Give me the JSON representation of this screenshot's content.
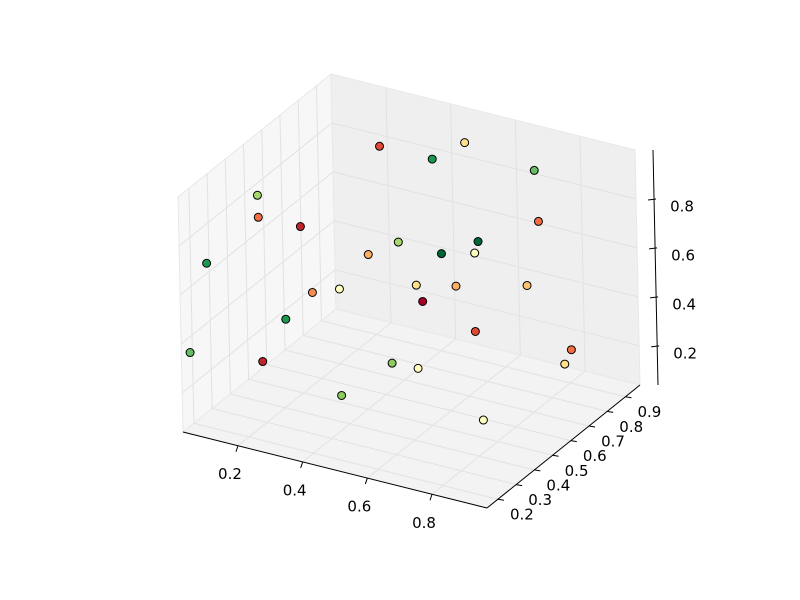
{
  "chart_data": {
    "type": "scatter3d",
    "x": [
      0.32,
      0.46,
      0.51,
      0.69,
      0.11,
      0.14,
      0.23,
      0.74,
      0.08,
      0.37,
      0.47,
      0.54,
      0.62,
      0.58,
      0.24,
      0.33,
      0.5,
      0.56,
      0.66,
      0.49,
      0.19,
      0.6,
      0.04,
      0.15,
      0.46,
      0.5,
      0.88,
      0.87,
      0.37,
      0.74
    ],
    "y": [
      0.73,
      0.77,
      0.86,
      0.92,
      0.43,
      0.38,
      0.45,
      0.85,
      0.2,
      0.57,
      0.56,
      0.67,
      0.73,
      0.78,
      0.49,
      0.48,
      0.6,
      0.71,
      0.92,
      0.65,
      0.43,
      0.74,
      0.17,
      0.37,
      0.53,
      0.6,
      0.77,
      0.75,
      0.41,
      0.53
    ],
    "z": [
      0.95,
      0.92,
      0.95,
      0.86,
      0.86,
      0.81,
      0.76,
      0.71,
      0.71,
      0.62,
      0.71,
      0.62,
      0.66,
      0.57,
      0.47,
      0.52,
      0.52,
      0.47,
      0.38,
      0.42,
      0.38,
      0.28,
      0.35,
      0.23,
      0.23,
      0.18,
      0.28,
      0.23,
      0.14,
      0.09
    ],
    "colors": [
      "#e34933",
      "#1a9850",
      "#fee08b",
      "#66bd63",
      "#a6d96a",
      "#f46d43",
      "#c0232a",
      "#f46d43",
      "#1a9850",
      "#fdae61",
      "#a6d96a",
      "#006837",
      "#006837",
      "#ffffbf",
      "#f88d52",
      "#ffffbf",
      "#fee08b",
      "#fdae61",
      "#fdc372",
      "#a50026",
      "#1a9850",
      "#e34933",
      "#66bd63",
      "#c0232a",
      "#8ccb5e",
      "#ffffbf",
      "#f46d43",
      "#fee08b",
      "#8ccb5e",
      "#ffffbf"
    ],
    "xlim": [
      0.03,
      0.97
    ],
    "ylim": [
      0.14,
      0.98
    ],
    "zlim": [
      0.04,
      1.0
    ],
    "xticks": [
      0.2,
      0.4,
      0.6,
      0.8
    ],
    "yticks": [
      0.2,
      0.3,
      0.4,
      0.5,
      0.6,
      0.7,
      0.8,
      0.9
    ],
    "zticks": [
      0.2,
      0.4,
      0.6,
      0.8
    ],
    "grid": true
  }
}
